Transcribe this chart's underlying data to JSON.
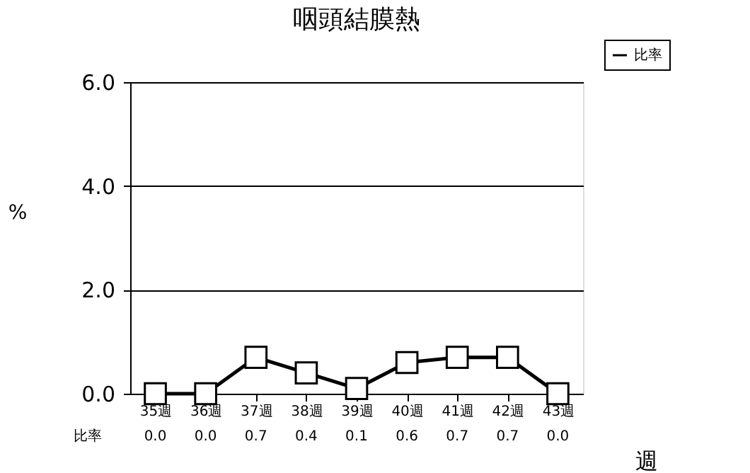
{
  "chart_data": {
    "type": "line",
    "title": "咽頭結膜熱",
    "ylabel": "%",
    "xlabel": "週",
    "categories": [
      "35週",
      "36週",
      "37週",
      "38週",
      "39週",
      "40週",
      "41週",
      "42週",
      "43週"
    ],
    "series": [
      {
        "name": "比率",
        "color": "#000000",
        "values": [
          0.0,
          0.0,
          0.7,
          0.4,
          0.1,
          0.6,
          0.7,
          0.7,
          0.0
        ],
        "value_labels": [
          "0.0",
          "0.0",
          "0.7",
          "0.4",
          "0.1",
          "0.6",
          "0.7",
          "0.7",
          "0.0"
        ]
      }
    ],
    "ylim": [
      0,
      6
    ],
    "yticks": [
      {
        "value": 0,
        "label": "0.0"
      },
      {
        "value": 2,
        "label": "2.0"
      },
      {
        "value": 4,
        "label": "4.0"
      },
      {
        "value": 6,
        "label": "6.0"
      }
    ],
    "grid": "y",
    "legend": "top right",
    "marker": "square",
    "line_style": "solid"
  }
}
